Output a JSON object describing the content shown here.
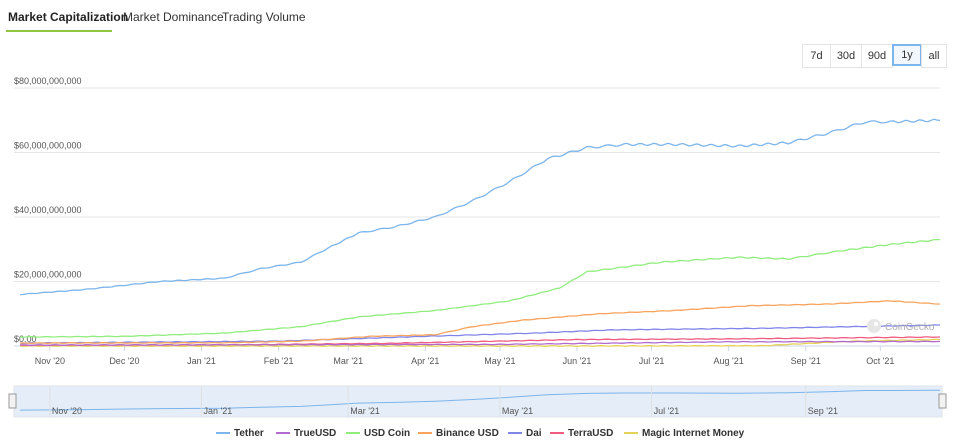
{
  "tabs": [
    {
      "label": "Market Capitalization",
      "active": true
    },
    {
      "label": "Market Dominance",
      "active": false
    },
    {
      "label": "Trading Volume",
      "active": false
    }
  ],
  "ranges": [
    {
      "label": "7d",
      "active": false
    },
    {
      "label": "30d",
      "active": false
    },
    {
      "label": "90d",
      "active": false
    },
    {
      "label": "1y",
      "active": true
    },
    {
      "label": "all",
      "active": false
    }
  ],
  "watermark": "CoinGecko",
  "chart_data": {
    "type": "line",
    "title": "",
    "xlabel": "",
    "ylabel": "",
    "ylim": [
      0,
      80000000000
    ],
    "yticks": [
      "$0.00",
      "$20,000,000,000",
      "$40,000,000,000",
      "$60,000,000,000",
      "$80,000,000,000"
    ],
    "x_range": [
      "2020-10-20",
      "2021-10-25"
    ],
    "xticks": [
      "Nov '20",
      "Dec '20",
      "Jan '21",
      "Feb '21",
      "Mar '21",
      "Apr '21",
      "May '21",
      "Jun '21",
      "Jul '21",
      "Aug '21",
      "Sep '21",
      "Oct '21"
    ],
    "grid": true,
    "legend_position": "bottom",
    "navigator_ticks": [
      "Nov '20",
      "Jan '21",
      "Mar '21",
      "May '21",
      "Jul '21",
      "Sep '21"
    ],
    "series": [
      {
        "name": "Tether",
        "color": "#7cb5ec",
        "x": [
          "2020-10-20",
          "2020-11-15",
          "2020-12-15",
          "2021-01-10",
          "2021-01-25",
          "2021-02-10",
          "2021-02-20",
          "2021-03-05",
          "2021-03-20",
          "2021-04-05",
          "2021-04-20",
          "2021-05-05",
          "2021-05-20",
          "2021-06-05",
          "2021-06-20",
          "2021-07-10",
          "2021-08-05",
          "2021-08-25",
          "2021-09-10",
          "2021-09-25",
          "2021-10-05",
          "2021-10-25"
        ],
        "values": [
          16000000000,
          17500000000,
          20000000000,
          21000000000,
          24000000000,
          26000000000,
          30000000000,
          35000000000,
          37000000000,
          40000000000,
          45000000000,
          51000000000,
          58000000000,
          61500000000,
          62500000000,
          62500000000,
          62000000000,
          63000000000,
          66000000000,
          69500000000,
          69500000000,
          70000000000
        ]
      },
      {
        "name": "TrueUSD",
        "color": "#b36ad0",
        "x": [
          "2020-10-20",
          "2021-02-01",
          "2021-05-01",
          "2021-08-01",
          "2021-10-25"
        ],
        "values": [
          300000000,
          400000000,
          500000000,
          1300000000,
          1400000000
        ]
      },
      {
        "name": "USD Coin",
        "color": "#90ed7d",
        "x": [
          "2020-10-20",
          "2020-12-01",
          "2021-01-10",
          "2021-02-10",
          "2021-03-05",
          "2021-04-05",
          "2021-05-05",
          "2021-05-25",
          "2021-06-05",
          "2021-07-05",
          "2021-08-05",
          "2021-08-25",
          "2021-09-15",
          "2021-10-05",
          "2021-10-25"
        ],
        "values": [
          2800000000,
          3000000000,
          4000000000,
          6000000000,
          9000000000,
          11000000000,
          14000000000,
          18000000000,
          23000000000,
          26000000000,
          27500000000,
          27000000000,
          29500000000,
          31500000000,
          33000000000
        ]
      },
      {
        "name": "Binance USD",
        "color": "#f7a35c",
        "x": [
          "2020-10-20",
          "2021-01-10",
          "2021-02-10",
          "2021-03-10",
          "2021-04-05",
          "2021-04-20",
          "2021-05-10",
          "2021-06-10",
          "2021-07-10",
          "2021-08-10",
          "2021-09-10",
          "2021-10-05",
          "2021-10-25"
        ],
        "values": [
          900000000,
          1000000000,
          1500000000,
          3000000000,
          3500000000,
          6000000000,
          8000000000,
          10000000000,
          11000000000,
          12500000000,
          13000000000,
          14000000000,
          13000000000
        ]
      },
      {
        "name": "Dai",
        "color": "#8085e9",
        "x": [
          "2020-10-20",
          "2021-02-01",
          "2021-04-01",
          "2021-05-15",
          "2021-06-15",
          "2021-08-15",
          "2021-10-25"
        ],
        "values": [
          900000000,
          1500000000,
          3000000000,
          4000000000,
          5000000000,
          5500000000,
          6500000000
        ]
      },
      {
        "name": "TerraUSD",
        "color": "#f15c80",
        "x": [
          "2020-10-20",
          "2021-01-15",
          "2021-03-15",
          "2021-06-01",
          "2021-08-01",
          "2021-10-25"
        ],
        "values": [
          200000000,
          400000000,
          800000000,
          2000000000,
          2200000000,
          2800000000
        ]
      },
      {
        "name": "Magic Internet Money",
        "color": "#e4d354",
        "x": [
          "2020-10-20",
          "2021-06-01",
          "2021-08-15",
          "2021-09-20",
          "2021-10-25"
        ],
        "values": [
          0,
          0,
          100000000,
          1500000000,
          2000000000
        ]
      }
    ]
  }
}
